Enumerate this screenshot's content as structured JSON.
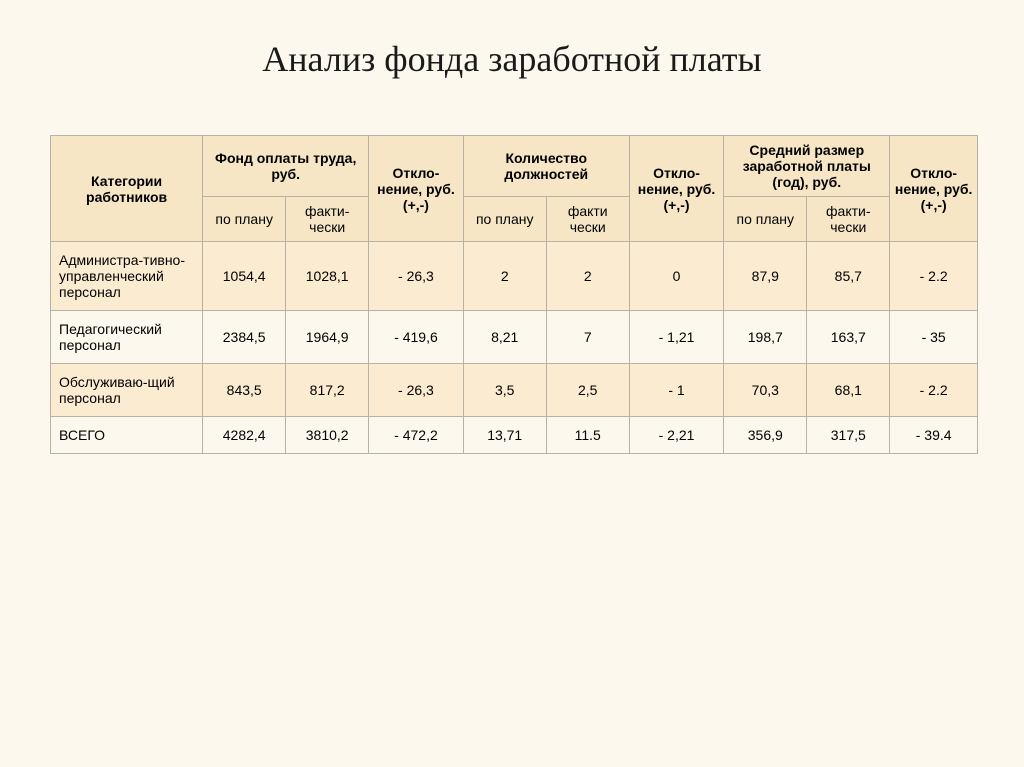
{
  "title": "Анализ фонда заработной платы",
  "headers": {
    "category": "Категории работников",
    "fund": "Фонд оплаты труда, руб.",
    "dev1": "Откло-нение, руб. (+,-)",
    "positions": "Количество должностей",
    "dev2": "Откло-нение, руб. (+,-)",
    "avg": "Средний размер заработной платы (год), руб.",
    "dev3": "Откло-нение, руб. (+,-)",
    "plan": "по плану",
    "fact1": "факти-чески",
    "fact2": "факти чески"
  },
  "rows": [
    {
      "label": "Администра-тивно-управленческий персонал",
      "band": true,
      "c": [
        "1054,4",
        "1028,1",
        "- 26,3",
        "2",
        "2",
        "0",
        "87,9",
        "85,7",
        "- 2.2"
      ]
    },
    {
      "label": "Педагогический персонал",
      "band": false,
      "c": [
        "2384,5",
        "1964,9",
        "- 419,6",
        "8,21",
        "7",
        "- 1,21",
        "198,7",
        "163,7",
        "- 35"
      ]
    },
    {
      "label": "Обслуживаю-щий персонал",
      "band": true,
      "c": [
        "843,5",
        "817,2",
        "- 26,3",
        "3,5",
        "2,5",
        "- 1",
        "70,3",
        "68,1",
        "- 2.2"
      ]
    },
    {
      "label": "ВСЕГО",
      "band": false,
      "c": [
        "4282,4",
        "3810,2",
        "- 472,2",
        "13,71",
        "11.5",
        "- 2,21",
        "356,9",
        "317,5",
        "- 39.4"
      ]
    }
  ]
}
